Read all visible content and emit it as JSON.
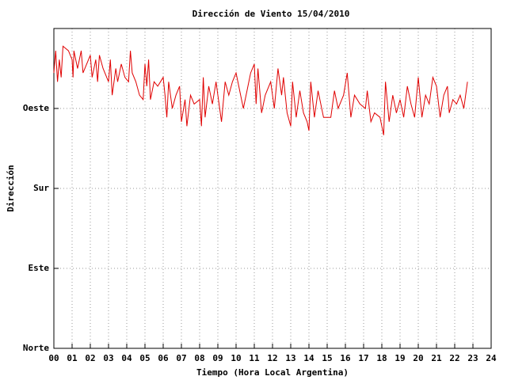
{
  "chart_data": {
    "type": "line",
    "title": "Dirección de Viento 15/04/2010",
    "x_label": "Tiempo (Hora Local Argentina)",
    "y_label": "Dirección",
    "color": "#e00000",
    "grid": true,
    "xlim": [
      0,
      24
    ],
    "ylim": [
      0,
      360
    ],
    "xticks": [
      {
        "value": 0,
        "label": "00"
      },
      {
        "value": 1,
        "label": "01"
      },
      {
        "value": 2,
        "label": "02"
      },
      {
        "value": 3,
        "label": "03"
      },
      {
        "value": 4,
        "label": "04"
      },
      {
        "value": 5,
        "label": "05"
      },
      {
        "value": 6,
        "label": "06"
      },
      {
        "value": 7,
        "label": "07"
      },
      {
        "value": 8,
        "label": "08"
      },
      {
        "value": 9,
        "label": "09"
      },
      10,
      11,
      12,
      13,
      14,
      15,
      16,
      17,
      18,
      19,
      20,
      21,
      22,
      23,
      24
    ],
    "yticks": [
      {
        "value": 0,
        "label": "Norte"
      },
      {
        "value": 90,
        "label": "Este"
      },
      {
        "value": 180,
        "label": "Sur"
      },
      {
        "value": 270,
        "label": "Oeste"
      }
    ],
    "x": [
      0.0,
      0.1,
      0.2,
      0.3,
      0.4,
      0.5,
      0.8,
      1.0,
      1.05,
      1.1,
      1.3,
      1.5,
      1.6,
      1.8,
      2.0,
      2.1,
      2.3,
      2.4,
      2.5,
      2.7,
      3.0,
      3.1,
      3.2,
      3.4,
      3.5,
      3.7,
      3.9,
      4.1,
      4.2,
      4.3,
      4.5,
      4.7,
      4.9,
      5.0,
      5.1,
      5.2,
      5.3,
      5.5,
      5.7,
      6.0,
      6.1,
      6.2,
      6.3,
      6.5,
      6.7,
      6.9,
      7.0,
      7.2,
      7.3,
      7.5,
      7.7,
      8.0,
      8.1,
      8.2,
      8.3,
      8.5,
      8.7,
      8.9,
      9.1,
      9.2,
      9.4,
      9.6,
      9.8,
      10.0,
      10.2,
      10.4,
      10.6,
      10.8,
      11.0,
      11.1,
      11.2,
      11.4,
      11.6,
      11.9,
      12.1,
      12.3,
      12.5,
      12.6,
      12.8,
      13.0,
      13.1,
      13.3,
      13.5,
      13.7,
      13.9,
      14.0,
      14.1,
      14.3,
      14.5,
      14.8,
      15.2,
      15.4,
      15.6,
      15.9,
      16.1,
      16.3,
      16.5,
      16.8,
      17.1,
      17.2,
      17.4,
      17.6,
      17.9,
      18.1,
      18.2,
      18.4,
      18.6,
      18.8,
      19.0,
      19.2,
      19.4,
      19.6,
      19.8,
      20.0,
      20.2,
      20.4,
      20.6,
      20.8,
      21.0,
      21.2,
      21.4,
      21.6,
      21.7,
      21.9,
      22.1,
      22.3,
      22.5,
      22.7
    ],
    "values": [
      310,
      335,
      300,
      325,
      305,
      340,
      335,
      325,
      305,
      335,
      315,
      335,
      310,
      320,
      330,
      305,
      325,
      300,
      330,
      315,
      300,
      325,
      285,
      315,
      300,
      320,
      305,
      300,
      335,
      310,
      300,
      285,
      280,
      320,
      295,
      325,
      280,
      300,
      295,
      305,
      285,
      260,
      300,
      270,
      285,
      295,
      255,
      280,
      250,
      285,
      275,
      280,
      250,
      305,
      260,
      295,
      275,
      300,
      270,
      255,
      300,
      285,
      300,
      310,
      290,
      270,
      290,
      310,
      320,
      275,
      315,
      265,
      285,
      300,
      270,
      315,
      285,
      305,
      265,
      250,
      300,
      260,
      290,
      265,
      255,
      245,
      300,
      260,
      290,
      260,
      260,
      290,
      270,
      285,
      310,
      260,
      285,
      275,
      270,
      290,
      255,
      265,
      260,
      240,
      300,
      255,
      285,
      265,
      280,
      260,
      295,
      275,
      260,
      305,
      260,
      285,
      275,
      305,
      295,
      260,
      285,
      295,
      265,
      280,
      275,
      285,
      270,
      300
    ]
  }
}
